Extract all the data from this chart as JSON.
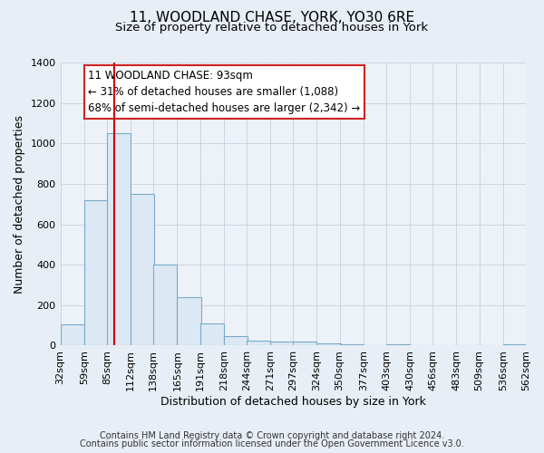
{
  "title": "11, WOODLAND CHASE, YORK, YO30 6RE",
  "subtitle": "Size of property relative to detached houses in York",
  "xlabel": "Distribution of detached houses by size in York",
  "ylabel": "Number of detached properties",
  "bar_color": "#dce8f3",
  "bar_edge_color": "#7aaacb",
  "bg_color": "#e8eef5",
  "plot_bg_color": "#edf2f8",
  "grid_color": "#c8d0dc",
  "vline_x": 93,
  "vline_color": "#cc0000",
  "bin_edges": [
    32,
    59,
    85,
    112,
    138,
    165,
    191,
    218,
    244,
    271,
    297,
    324,
    350,
    377,
    403,
    430,
    456,
    483,
    509,
    536,
    562
  ],
  "bin_labels": [
    "32sqm",
    "59sqm",
    "85sqm",
    "112sqm",
    "138sqm",
    "165sqm",
    "191sqm",
    "218sqm",
    "244sqm",
    "271sqm",
    "297sqm",
    "324sqm",
    "350sqm",
    "377sqm",
    "403sqm",
    "430sqm",
    "456sqm",
    "483sqm",
    "509sqm",
    "536sqm",
    "562sqm"
  ],
  "bar_heights": [
    105,
    720,
    1050,
    750,
    400,
    240,
    110,
    47,
    25,
    22,
    20,
    10,
    5,
    0,
    5,
    0,
    0,
    0,
    0,
    5
  ],
  "ylim": [
    0,
    1400
  ],
  "yticks": [
    0,
    200,
    400,
    600,
    800,
    1000,
    1200,
    1400
  ],
  "annotation_line1": "11 WOODLAND CHASE: 93sqm",
  "annotation_line2": "← 31% of detached houses are smaller (1,088)",
  "annotation_line3": "68% of semi-detached houses are larger (2,342) →",
  "footer_line1": "Contains HM Land Registry data © Crown copyright and database right 2024.",
  "footer_line2": "Contains public sector information licensed under the Open Government Licence v3.0.",
  "title_fontsize": 11,
  "subtitle_fontsize": 9.5,
  "label_fontsize": 9,
  "tick_fontsize": 8,
  "annotation_fontsize": 8.5,
  "footer_fontsize": 7
}
